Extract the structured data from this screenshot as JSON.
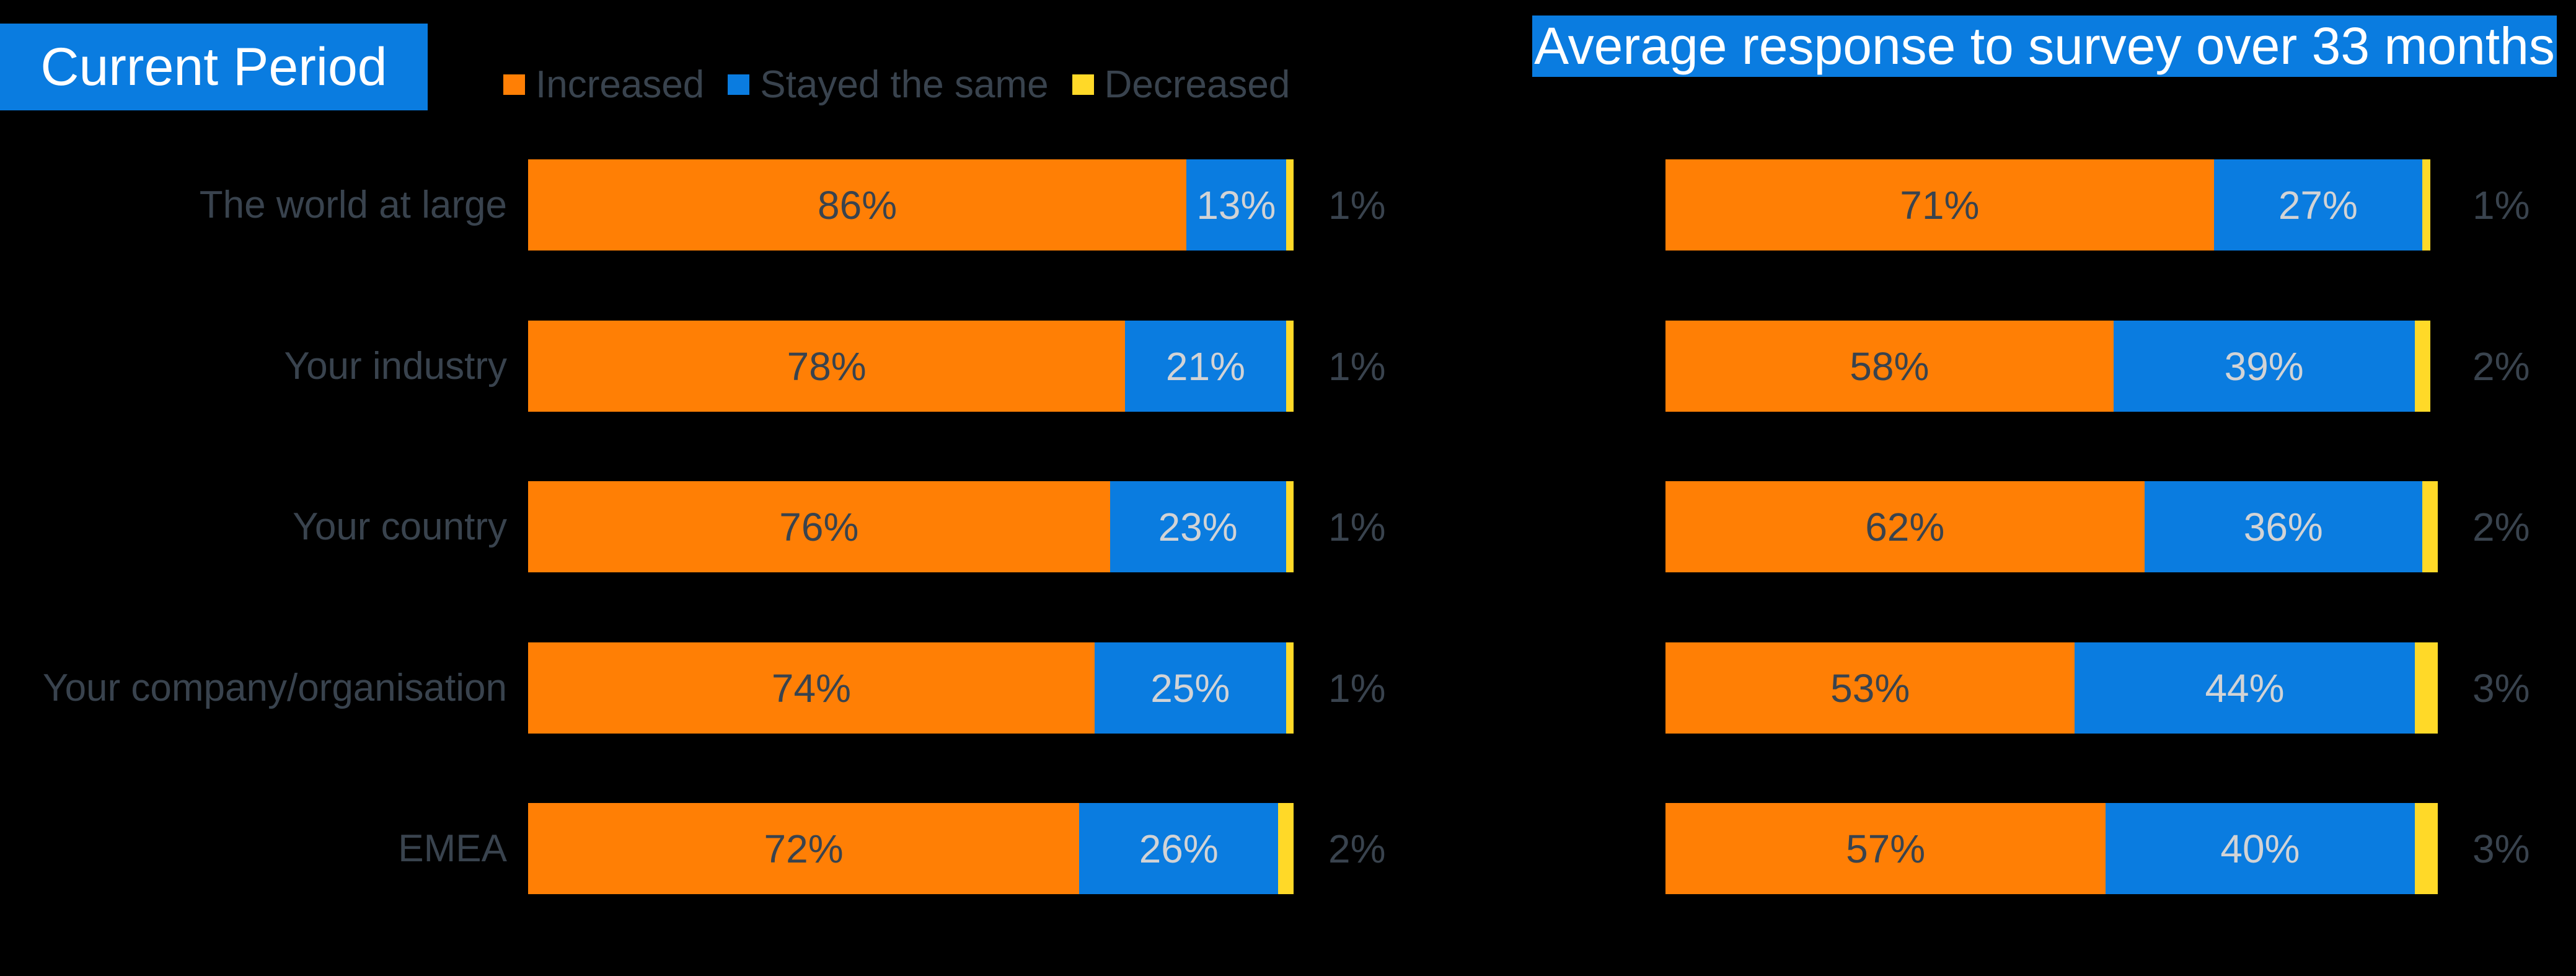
{
  "page": {
    "background": "#000000"
  },
  "palette": {
    "orange": "#FF7F05",
    "blue": "#0A7CE0",
    "yellow": "#FFD928",
    "title_bg": "#0A7CE0",
    "title_text": "#FFFFFF",
    "dark_label": "#39434E",
    "light_label": "#D2D3D5"
  },
  "chart_data": [
    {
      "type": "bar",
      "orientation": "horizontal",
      "stacked": true,
      "title": "Current Period",
      "categories": [
        "The world at large",
        "Your industry",
        "Your country",
        "Your company/organisation",
        "EMEA"
      ],
      "series": [
        {
          "name": "Increased",
          "color": "#FF7F05",
          "label_style": "dark",
          "label_placement": "inside",
          "values": [
            86,
            78,
            76,
            74,
            72
          ]
        },
        {
          "name": "Stayed the same",
          "color": "#0A7CE0",
          "label_style": "light",
          "label_placement": "inside",
          "values": [
            13,
            21,
            23,
            25,
            26
          ]
        },
        {
          "name": "Decreased",
          "color": "#FFD928",
          "label_style": "dark",
          "label_placement": "outside",
          "values": [
            1,
            1,
            1,
            1,
            2
          ]
        }
      ],
      "value_suffix": "%",
      "xlim": [
        0,
        100
      ],
      "grid": false,
      "legend_position": "top",
      "show_category_labels": true
    },
    {
      "type": "bar",
      "orientation": "horizontal",
      "stacked": true,
      "title": "Average response to survey over 33 months",
      "categories": [
        "The world at large",
        "Your industry",
        "Your country",
        "Your company/organisation",
        "EMEA"
      ],
      "series": [
        {
          "name": "Increased",
          "color": "#FF7F05",
          "label_style": "dark",
          "label_placement": "inside",
          "values": [
            71,
            58,
            62,
            53,
            57
          ]
        },
        {
          "name": "Stayed the same",
          "color": "#0A7CE0",
          "label_style": "light",
          "label_placement": "inside",
          "values": [
            27,
            39,
            36,
            44,
            40
          ]
        },
        {
          "name": "Decreased",
          "color": "#FFD928",
          "label_style": "dark",
          "label_placement": "outside",
          "values": [
            1,
            2,
            2,
            3,
            3
          ]
        }
      ],
      "value_suffix": "%",
      "xlim": [
        0,
        100
      ],
      "grid": false,
      "legend_position": "none",
      "show_category_labels": false
    }
  ]
}
